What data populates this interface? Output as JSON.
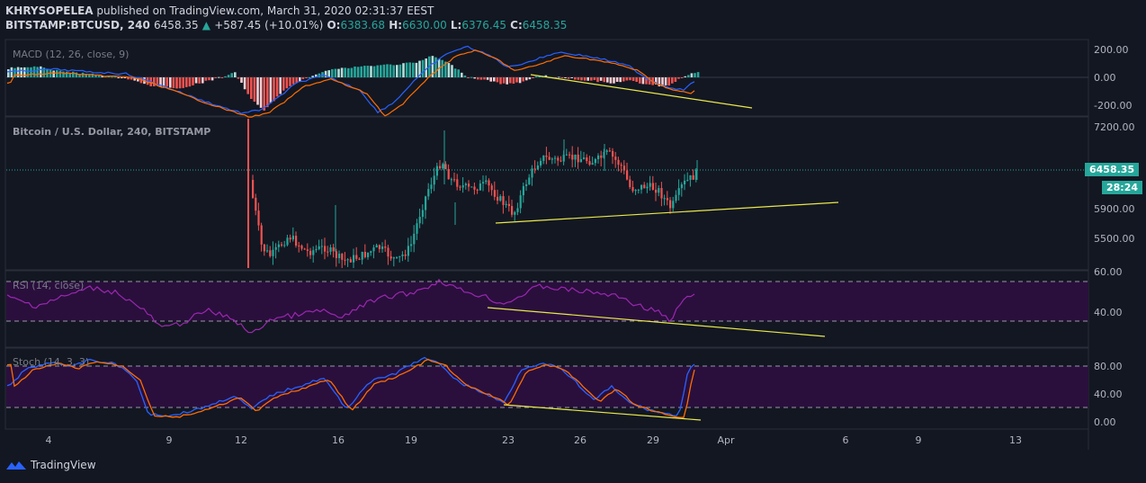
{
  "header": {
    "publisher": "KHRYSOPELEA",
    "published_text": "published on TradingView.com, March 31, 2020 02:31:37 EEST",
    "symbol": "BITSTAMP:BTCUSD, 240",
    "last": "6458.35",
    "change_arrow": "▲",
    "change": "+587.45 (+10.01%)",
    "o_label": "O:",
    "o": "6383.68",
    "h_label": "H:",
    "h": "6630.00",
    "l_label": "L:",
    "l": "6376.45",
    "c_label": "C:",
    "c": "6458.35"
  },
  "panes": {
    "macd_label": "MACD (12, 26, close, 9)",
    "price_label": "Bitcoin / U.S. Dollar, 240, BITSTAMP",
    "rsi_label": "RSI (14, close)",
    "stoch_label": "Stoch (14, 3, 3)"
  },
  "price_tags": {
    "last_price": "6458.35",
    "countdown": "28:24"
  },
  "footer": {
    "brand": "TradingView"
  },
  "colors": {
    "up": "#26a69a",
    "down": "#ef5350",
    "macd": "#2962ff",
    "signal": "#ff6d00",
    "rsi": "#9c27b0",
    "stoch_k": "#2962ff",
    "stoch_d": "#ff6d00",
    "trend": "#e8e84a",
    "band": "#2a0f3d"
  },
  "chart_data": [
    {
      "type": "bar",
      "pane": "MACD",
      "y_ticks": [
        "200.00",
        "0.00",
        "-200.00"
      ],
      "ylim": [
        -260,
        260
      ],
      "histogram_note": "MACD histogram with MACD line and signal line",
      "x_ticks": [
        "4",
        "9",
        "12",
        "16",
        "19",
        "23",
        "26",
        "29",
        "Apr",
        "6",
        "9",
        "13"
      ]
    },
    {
      "type": "line",
      "pane": "Price",
      "title": "Bitcoin / U.S. Dollar, 240, BITSTAMP",
      "y_ticks": [
        "7200.00",
        "5900.00",
        "5500.00"
      ],
      "ylim": [
        5400,
        7300
      ],
      "last_price": 6458.35
    },
    {
      "type": "line",
      "pane": "RSI",
      "y_ticks": [
        "60.00",
        "40.00"
      ],
      "band": [
        30,
        70
      ]
    },
    {
      "type": "line",
      "pane": "Stoch",
      "y_ticks": [
        "80.00",
        "40.00",
        "0.00"
      ],
      "band": [
        20,
        80
      ]
    }
  ]
}
